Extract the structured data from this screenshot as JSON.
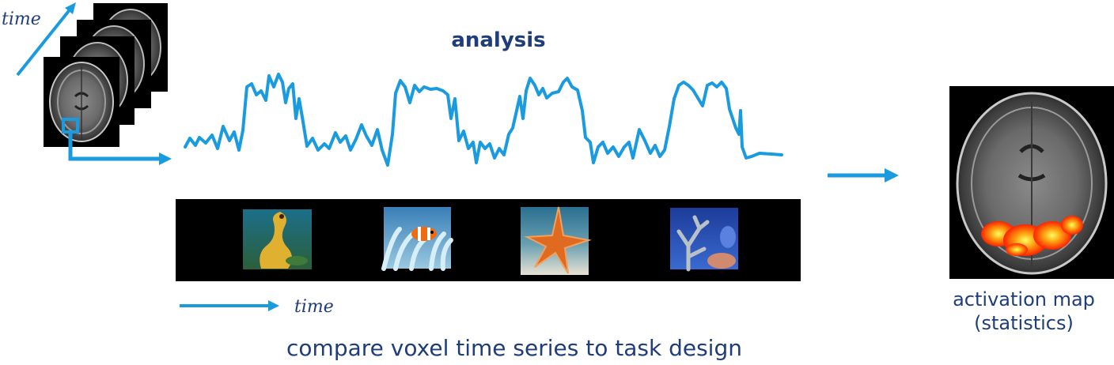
{
  "title": "analysis",
  "time_label_top": "time",
  "time_label_bottom": "time",
  "caption": "compare voxel time series to task design",
  "activation_label_line1": "activation map",
  "activation_label_line2": "(statistics)",
  "stimuli": [
    {
      "name": "seahorse"
    },
    {
      "name": "clownfish-anemone"
    },
    {
      "name": "starfish"
    },
    {
      "name": "coral"
    }
  ],
  "colors": {
    "accent": "#1a9be0",
    "text": "#1f3d7a",
    "strip": "#000000"
  }
}
